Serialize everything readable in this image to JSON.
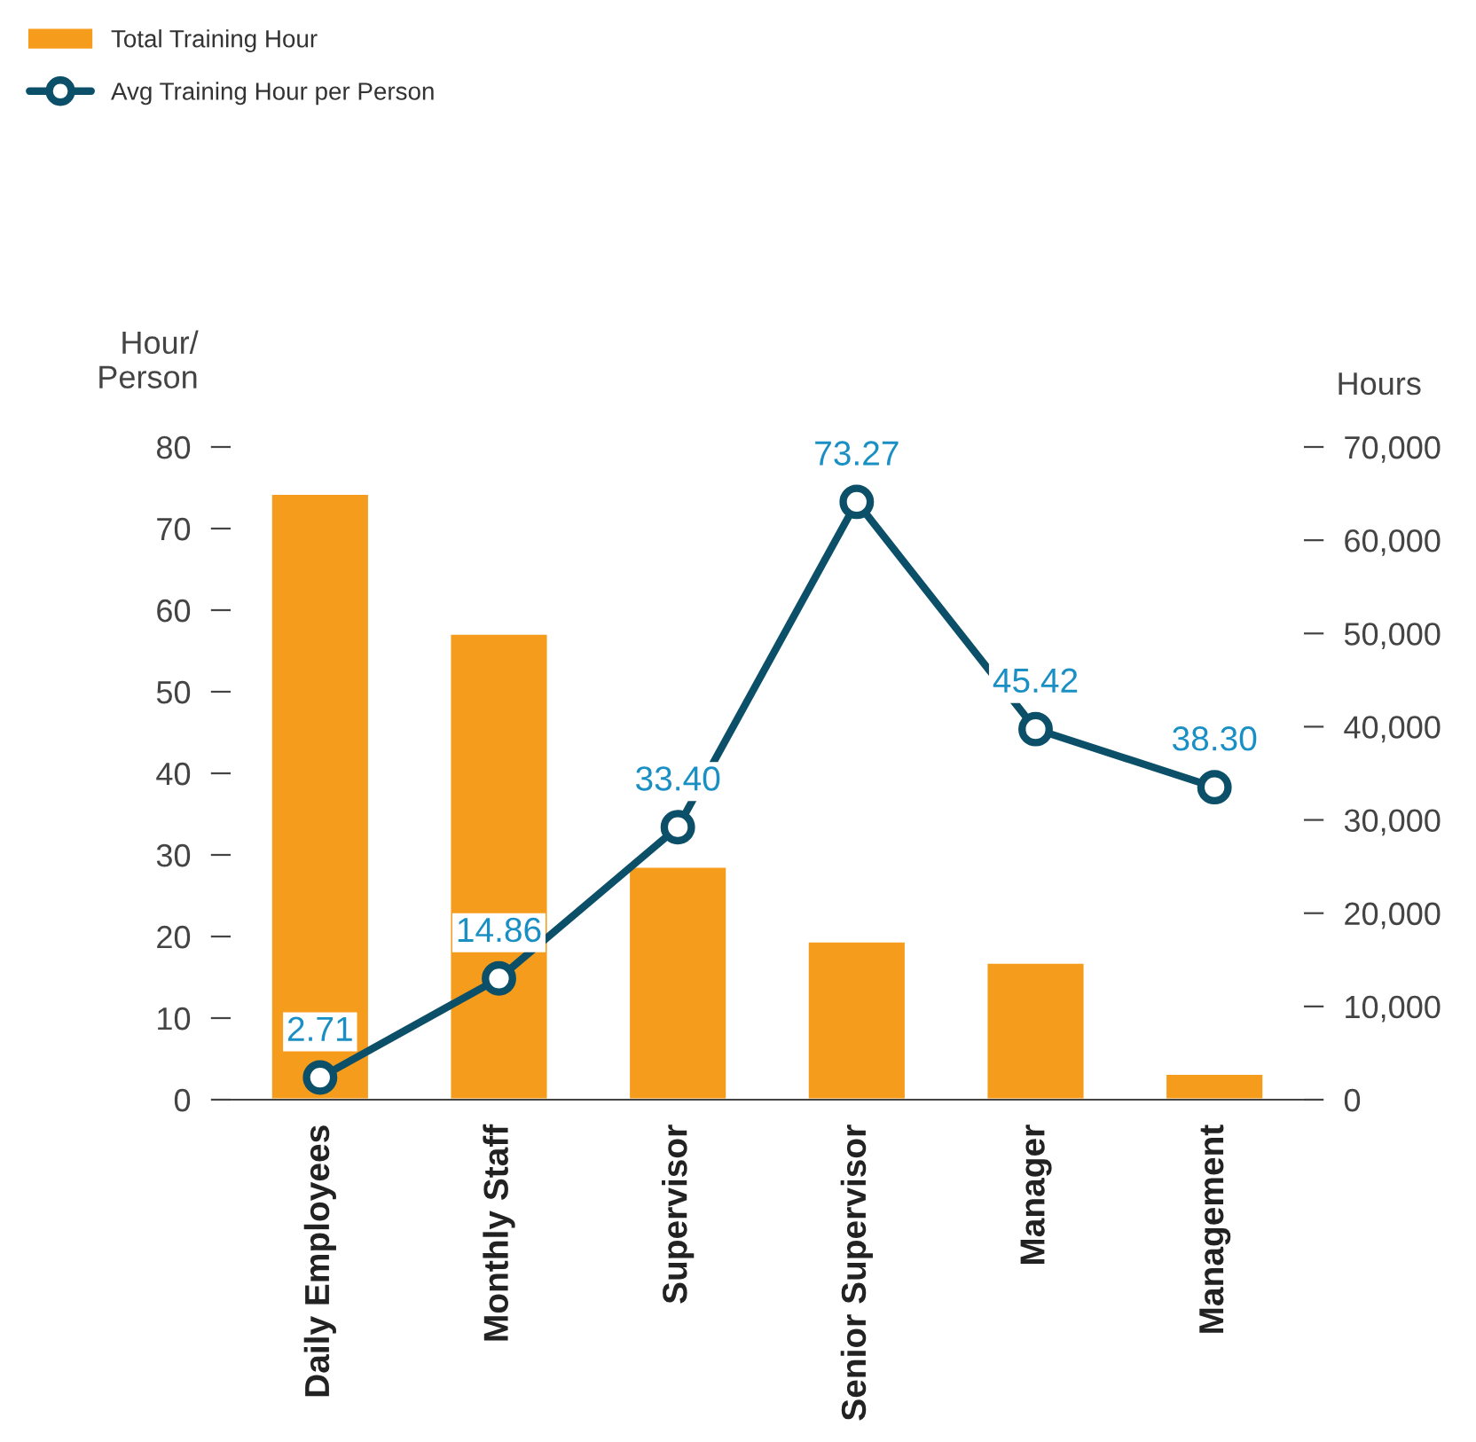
{
  "chart_data": {
    "type": "bar",
    "ylabel": "Hour/\nPerson",
    "y2label": "Hours",
    "categories": [
      "Daily Employees",
      "Monthly Staff",
      "Supervisor",
      "Senior Supervisor",
      "Manager",
      "Management"
    ],
    "series": [
      {
        "name": "Total Training Hour",
        "axis": "y2",
        "color": "#f69c1c",
        "values": [
          65000,
          50000,
          25000,
          17000,
          14700,
          2800
        ]
      },
      {
        "name": "Avg Training Hour per Person",
        "type": "line",
        "axis": "y",
        "color": "#0b4f68",
        "marker": "circle",
        "values": [
          2.71,
          14.86,
          33.4,
          73.27,
          45.42,
          38.3
        ],
        "value_labels": [
          "2.71",
          "14.86",
          "33.40",
          "73.27",
          "45.42",
          "38.30"
        ]
      }
    ],
    "ylim": [
      0,
      80
    ],
    "yticks": [
      0,
      10,
      20,
      30,
      40,
      50,
      60,
      70,
      80
    ],
    "y2lim": [
      0,
      70000
    ],
    "y2ticks": [
      {
        "value": 0,
        "label": "0"
      },
      {
        "value": 10000,
        "label": "10,000"
      },
      {
        "value": 20000,
        "label": "20,000"
      },
      {
        "value": 30000,
        "label": "30,000"
      },
      {
        "value": 40000,
        "label": "40,000"
      },
      {
        "value": 50000,
        "label": "50,000"
      },
      {
        "value": 60000,
        "label": "60,000"
      },
      {
        "value": 70000,
        "label": "70,000"
      }
    ],
    "grid": false,
    "legend": "top left"
  }
}
